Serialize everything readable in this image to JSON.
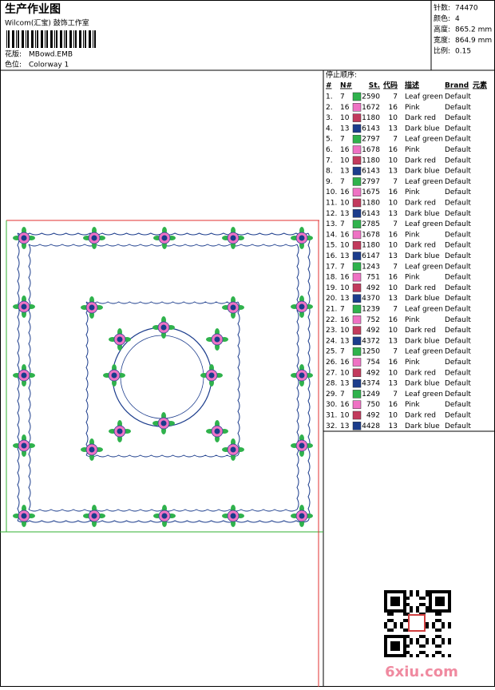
{
  "header": {
    "title": "生产作业图",
    "studio": "Wilcom(汇宝) 鼓饰工作室",
    "design_label": "花版:",
    "design": "MBowd.EMB",
    "colorway_label": "色位:",
    "colorway": "Colorway 1"
  },
  "info": [
    {
      "label": "针数:",
      "value": "74470"
    },
    {
      "label": "颜色:",
      "value": "4"
    },
    {
      "label": "高度:",
      "value": "865.2 mm"
    },
    {
      "label": "宽度:",
      "value": "864.9 mm"
    },
    {
      "label": "比例:",
      "value": "0.15"
    }
  ],
  "table": {
    "title": "停止顺序:",
    "columns": [
      "#",
      "N#",
      "St.",
      "代码",
      "描述",
      "Brand",
      "元素"
    ],
    "colors": {
      "Leaf green": "#2fb24c",
      "Pink": "#ef72c4",
      "Dark red": "#c23a5c",
      "Dark blue": "#1b3c8c"
    },
    "rows": [
      [
        "1.",
        "7",
        "2590",
        "7",
        "Leaf green",
        "Default"
      ],
      [
        "2.",
        "16",
        "1672",
        "16",
        "Pink",
        "Default"
      ],
      [
        "3.",
        "10",
        "1180",
        "10",
        "Dark red",
        "Default"
      ],
      [
        "4.",
        "13",
        "6143",
        "13",
        "Dark blue",
        "Default"
      ],
      [
        "5.",
        "7",
        "2797",
        "7",
        "Leaf green",
        "Default"
      ],
      [
        "6.",
        "16",
        "1678",
        "16",
        "Pink",
        "Default"
      ],
      [
        "7.",
        "10",
        "1180",
        "10",
        "Dark red",
        "Default"
      ],
      [
        "8.",
        "13",
        "6143",
        "13",
        "Dark blue",
        "Default"
      ],
      [
        "9.",
        "7",
        "2797",
        "7",
        "Leaf green",
        "Default"
      ],
      [
        "10.",
        "16",
        "1675",
        "16",
        "Pink",
        "Default"
      ],
      [
        "11.",
        "10",
        "1180",
        "10",
        "Dark red",
        "Default"
      ],
      [
        "12.",
        "13",
        "6143",
        "13",
        "Dark blue",
        "Default"
      ],
      [
        "13.",
        "7",
        "2785",
        "7",
        "Leaf green",
        "Default"
      ],
      [
        "14.",
        "16",
        "1678",
        "16",
        "Pink",
        "Default"
      ],
      [
        "15.",
        "10",
        "1180",
        "10",
        "Dark red",
        "Default"
      ],
      [
        "16.",
        "13",
        "6147",
        "13",
        "Dark blue",
        "Default"
      ],
      [
        "17.",
        "7",
        "1243",
        "7",
        "Leaf green",
        "Default"
      ],
      [
        "18.",
        "16",
        "751",
        "16",
        "Pink",
        "Default"
      ],
      [
        "19.",
        "10",
        "492",
        "10",
        "Dark red",
        "Default"
      ],
      [
        "20.",
        "13",
        "4370",
        "13",
        "Dark blue",
        "Default"
      ],
      [
        "21.",
        "7",
        "1239",
        "7",
        "Leaf green",
        "Default"
      ],
      [
        "22.",
        "16",
        "752",
        "16",
        "Pink",
        "Default"
      ],
      [
        "23.",
        "10",
        "492",
        "10",
        "Dark red",
        "Default"
      ],
      [
        "24.",
        "13",
        "4372",
        "13",
        "Dark blue",
        "Default"
      ],
      [
        "25.",
        "7",
        "1250",
        "7",
        "Leaf green",
        "Default"
      ],
      [
        "26.",
        "16",
        "754",
        "16",
        "Pink",
        "Default"
      ],
      [
        "27.",
        "10",
        "492",
        "10",
        "Dark red",
        "Default"
      ],
      [
        "28.",
        "13",
        "4374",
        "13",
        "Dark blue",
        "Default"
      ],
      [
        "29.",
        "7",
        "1249",
        "7",
        "Leaf green",
        "Default"
      ],
      [
        "30.",
        "16",
        "750",
        "16",
        "Pink",
        "Default"
      ],
      [
        "31.",
        "10",
        "492",
        "10",
        "Dark red",
        "Default"
      ],
      [
        "32.",
        "13",
        "4428",
        "13",
        "Dark blue",
        "Default"
      ]
    ]
  },
  "watermark": "6xiu.com"
}
